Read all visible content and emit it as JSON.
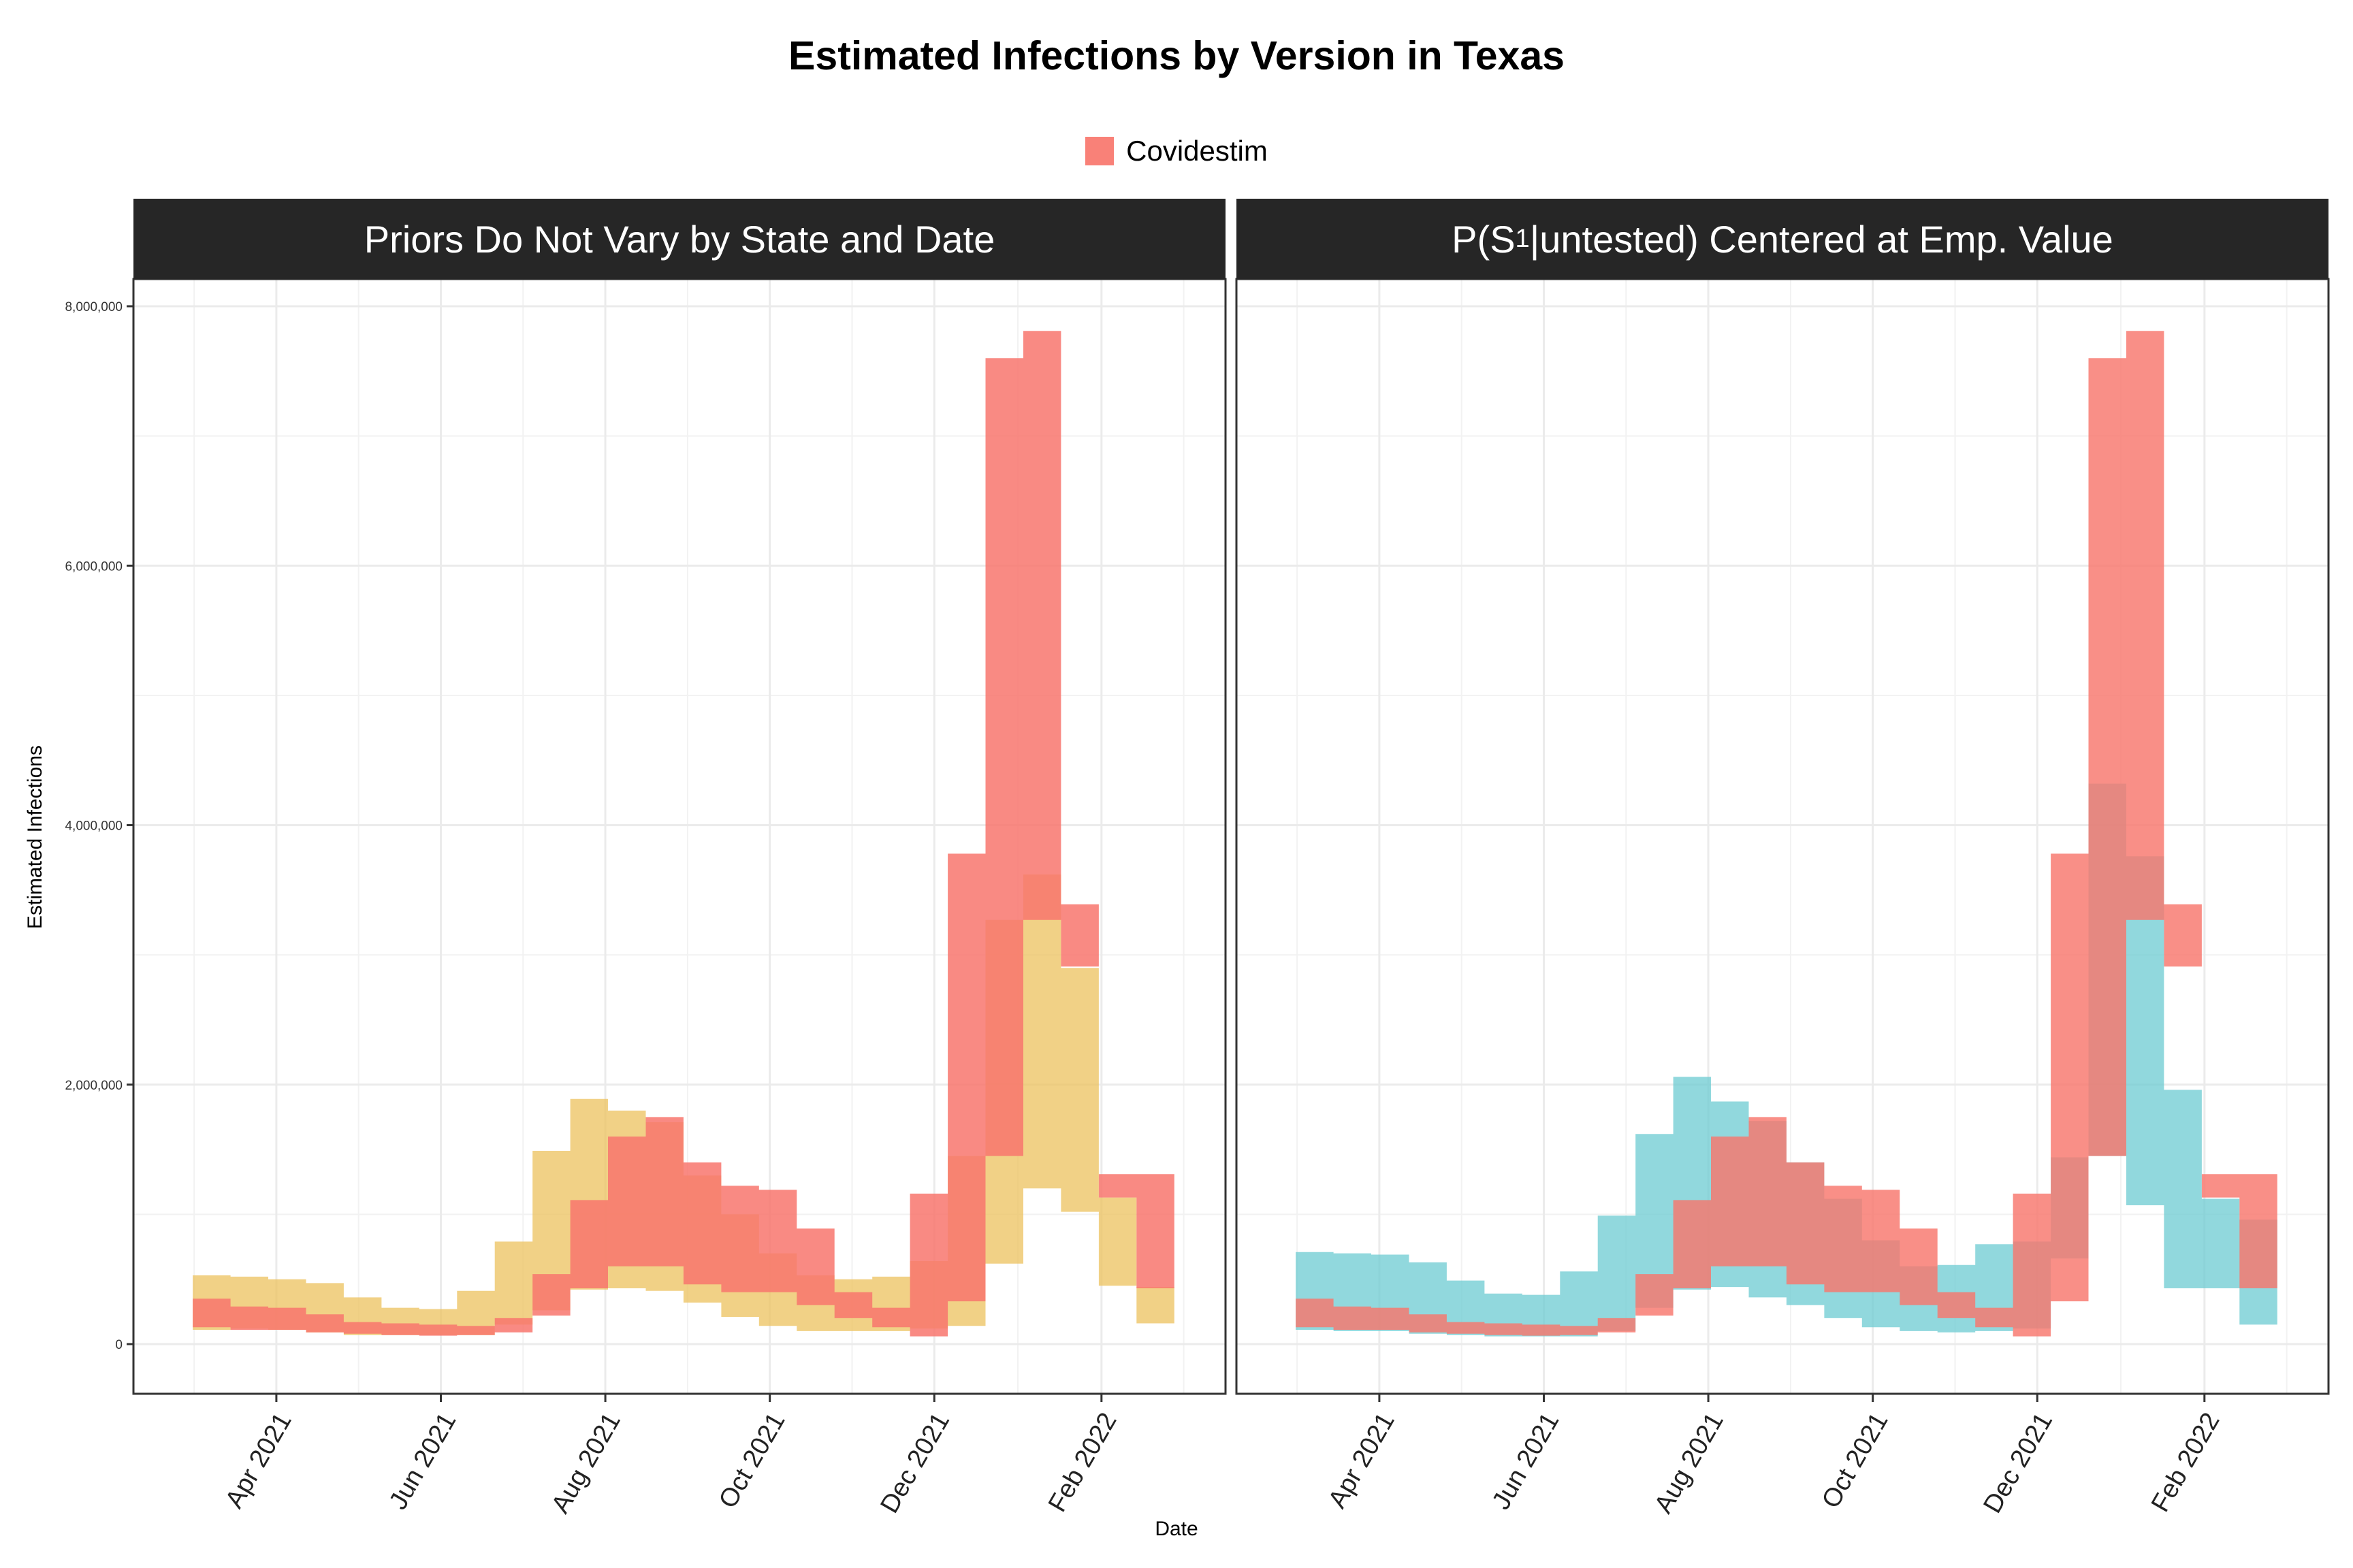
{
  "chart_data": {
    "type": "area",
    "title": "Estimated Infections by Version in Texas",
    "xlabel": "Date",
    "ylabel": "Estimated Infections",
    "legend": {
      "entries": [
        "Covidestim"
      ],
      "placement": "top"
    },
    "colors": {
      "covidestim": "#F8766D",
      "left_model": "#ECC15E",
      "right_model": "#6CCBD1",
      "panel_border": "#333333",
      "grid": "#EBEBEB",
      "strip": "#262626"
    },
    "ylim": [
      0,
      8000000
    ],
    "y_ticks": [
      0,
      2000000,
      4000000,
      6000000,
      8000000
    ],
    "y_tick_labels": [
      "0",
      "2,000,000",
      "4,000,000",
      "6,000,000",
      "8,000,000"
    ],
    "x_range": [
      "2021-02-07",
      "2022-03-19"
    ],
    "x_ticks": [
      "2021-04-01",
      "2021-06-01",
      "2021-08-01",
      "2021-10-01",
      "2021-12-01",
      "2022-02-01"
    ],
    "x_tick_labels": [
      "Apr 2021",
      "Jun 2021",
      "Aug 2021",
      "Oct 2021",
      "Dec 2021",
      "Feb 2022"
    ],
    "covidestim": {
      "weeks": [
        "2021-03-01",
        "2021-03-15",
        "2021-03-29",
        "2021-04-12",
        "2021-04-26",
        "2021-05-10",
        "2021-05-24",
        "2021-06-07",
        "2021-06-21",
        "2021-07-05",
        "2021-07-19",
        "2021-08-02",
        "2021-08-16",
        "2021-08-30",
        "2021-09-13",
        "2021-09-27",
        "2021-10-11",
        "2021-10-25",
        "2021-11-08",
        "2021-11-22",
        "2021-12-06",
        "2021-12-20",
        "2022-01-03",
        "2022-01-17",
        "2022-01-31",
        "2022-02-14"
      ],
      "lower": [
        130000,
        110000,
        110000,
        90000,
        80000,
        70000,
        65000,
        70000,
        90000,
        220000,
        430000,
        600000,
        600000,
        460000,
        400000,
        400000,
        300000,
        200000,
        130000,
        60000,
        330000,
        1450000,
        3270000,
        2910000,
        1130000,
        430000
      ],
      "upper": [
        350000,
        290000,
        280000,
        230000,
        170000,
        160000,
        150000,
        140000,
        200000,
        540000,
        1110000,
        1600000,
        1750000,
        1400000,
        1220000,
        1190000,
        890000,
        400000,
        280000,
        1160000,
        3780000,
        7600000,
        7810000,
        3390000,
        1310000,
        1310000
      ]
    },
    "panels": [
      {
        "strip": "Priors Do Not Vary by State and Date",
        "model": {
          "weeks": [
            "2021-03-01",
            "2021-03-15",
            "2021-03-29",
            "2021-04-12",
            "2021-04-26",
            "2021-05-10",
            "2021-05-24",
            "2021-06-07",
            "2021-06-21",
            "2021-07-05",
            "2021-07-19",
            "2021-08-02",
            "2021-08-16",
            "2021-08-30",
            "2021-09-13",
            "2021-09-27",
            "2021-10-11",
            "2021-10-25",
            "2021-11-08",
            "2021-11-22",
            "2021-12-06",
            "2021-12-20",
            "2022-01-03",
            "2022-01-17",
            "2022-01-31",
            "2022-02-14"
          ],
          "lower": [
            110000,
            120000,
            110000,
            90000,
            70000,
            70000,
            70000,
            70000,
            150000,
            260000,
            420000,
            430000,
            410000,
            320000,
            210000,
            140000,
            100000,
            100000,
            100000,
            120000,
            140000,
            620000,
            1200000,
            1020000,
            450000,
            160000
          ],
          "upper": [
            530000,
            520000,
            500000,
            470000,
            360000,
            280000,
            270000,
            410000,
            790000,
            1490000,
            1890000,
            1800000,
            1710000,
            1300000,
            1000000,
            700000,
            530000,
            500000,
            520000,
            640000,
            1450000,
            3270000,
            3620000,
            2900000,
            1130000,
            440000
          ]
        }
      },
      {
        "strip_prefix": "P",
        "strip_s": "S",
        "strip_sub": "1",
        "strip_given": "untested",
        "strip_suffix": "Centered at Emp. Value",
        "model": {
          "weeks": [
            "2021-03-01",
            "2021-03-15",
            "2021-03-29",
            "2021-04-12",
            "2021-04-26",
            "2021-05-10",
            "2021-05-24",
            "2021-06-07",
            "2021-06-21",
            "2021-07-05",
            "2021-07-19",
            "2021-08-02",
            "2021-08-16",
            "2021-08-30",
            "2021-09-13",
            "2021-09-27",
            "2021-10-11",
            "2021-10-25",
            "2021-11-08",
            "2021-11-22",
            "2021-12-06",
            "2021-12-20",
            "2022-01-03",
            "2022-01-17",
            "2022-01-31",
            "2022-02-14"
          ],
          "lower": [
            110000,
            100000,
            100000,
            80000,
            70000,
            60000,
            60000,
            60000,
            100000,
            280000,
            420000,
            440000,
            360000,
            300000,
            200000,
            130000,
            100000,
            90000,
            100000,
            120000,
            660000,
            1450000,
            1070000,
            430000,
            430000,
            150000
          ],
          "upper": [
            710000,
            700000,
            690000,
            630000,
            490000,
            390000,
            380000,
            560000,
            990000,
            1620000,
            2060000,
            1870000,
            1720000,
            1400000,
            1120000,
            800000,
            600000,
            610000,
            770000,
            790000,
            1440000,
            4320000,
            3760000,
            1960000,
            1120000,
            960000
          ]
        }
      }
    ]
  }
}
